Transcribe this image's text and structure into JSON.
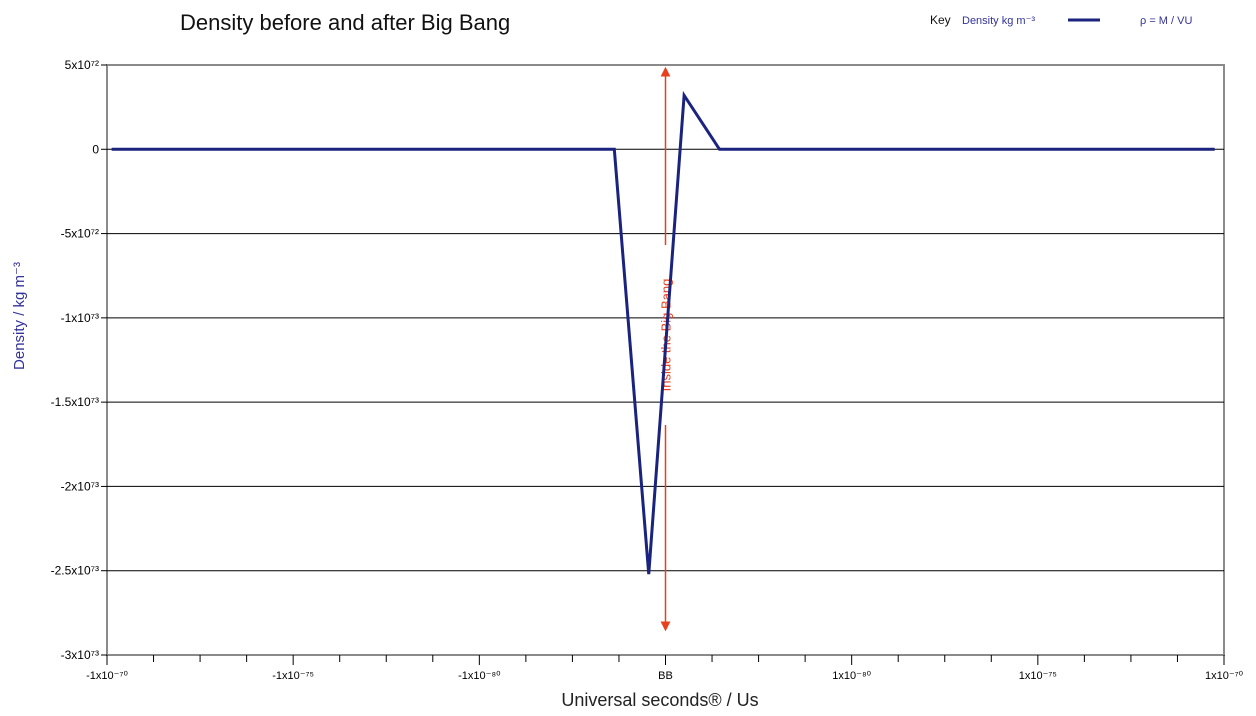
{
  "chart_data": {
    "type": "line",
    "title": "Density before and after Big Bang",
    "xlabel": "Universal seconds® / Us",
    "ylabel": "Density / kg m⁻³",
    "y_tick_labels": [
      "5x10⁷²",
      "0",
      "-5x10⁷²",
      "-1x10⁷³",
      "-1.5x10⁷³",
      "-2x10⁷³",
      "-2.5x10⁷³",
      "-3x10⁷³"
    ],
    "y_tick_values": [
      5e+72,
      0,
      -5e+72,
      -1e+73,
      -1.5e+73,
      -2e+73,
      -2.5e+73,
      -3e+73
    ],
    "ylim": [
      -3e+73,
      5e+72
    ],
    "x_tick_labels": [
      "-1x10⁻⁷⁰",
      "-1x10⁻⁷⁵",
      "-1x10⁻⁸⁰",
      "BB",
      "1x10⁻⁸⁰",
      "1x10⁻⁷⁵",
      "1x10⁻⁷⁰"
    ],
    "x_tick_positions": [
      -6,
      -4,
      -2,
      0,
      2,
      4,
      6
    ],
    "x_axis_note": "symmetric log-like scale centred on BB; x values are category positions between the labelled ticks",
    "xlim": [
      -6,
      6
    ],
    "series": [
      {
        "name": "Density kg m⁻³",
        "color": "#1a237e",
        "x": [
          -5.95,
          -0.55,
          -0.18,
          0.2,
          0.58,
          5.9
        ],
        "y": [
          0,
          0,
          -2.52e+73,
          3.2e+72,
          0,
          0
        ]
      }
    ],
    "legend": {
      "position": "top-right",
      "key_label": "Key",
      "series_label": "Density kg m⁻³",
      "formula": "ρ = M / VU"
    },
    "annotation": {
      "text": "Inside the Big Bang",
      "color": "#e8401c",
      "x": 0,
      "y_range": [
        -2.83e+73,
        4.6e+72
      ]
    },
    "grid": "horizontal"
  }
}
